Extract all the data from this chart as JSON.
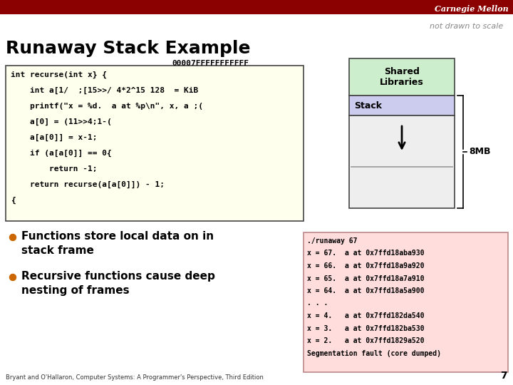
{
  "title": "Runaway Stack Example",
  "subtitle": "not drawn to scale",
  "carnegie_mellon": "Carnegie Mellon",
  "address_label": "00007FFFFFFFFFFF",
  "code_lines": [
    "int recurse(int x} {",
    "    int a[1/  ;[15>>/ 4*2^15 128  = KiB",
    "    printf(\"x = %d.  a at %p\\n\", x, a ;(",
    "    a[0] = (11>>4;1-(",
    "    a[a[0]] = x-1;",
    "    if (a[a[0]] == 0{",
    "        return -1;",
    "    return recurse(a[a[0]]) - 1;",
    "{"
  ],
  "shared_lib_label": "Shared\nLibraries",
  "stack_label": "Stack",
  "brace_label": "8MB",
  "bullet1_line1": "Functions store local data on in",
  "bullet1_line2": "stack frame",
  "bullet2_line1": "Recursive functions cause deep",
  "bullet2_line2": "nesting of frames",
  "terminal_lines": [
    "./runaway 67",
    "x = 67.  a at 0x7ffd18aba930",
    "x = 66.  a at 0x7ffd18a9a920",
    "x = 65.  a at 0x7ffd18a7a910",
    "x = 64.  a at 0x7ffd18a5a900",
    ". . .",
    "x = 4.   a at 0x7ffd182da540",
    "x = 3.   a at 0x7ffd182ba530",
    "x = 2.   a at 0x7ffd1829a520",
    "Segmentation fault (core dumped)"
  ],
  "footer": "Bryant and O'Hallaron, Computer Systems: A Programmer's Perspective, Third Edition",
  "page_number": "7",
  "bg_color": "#FFFFFF",
  "header_color": "#8B0000",
  "code_bg": "#FFFFEE",
  "shared_lib_bg": "#CCEECC",
  "stack_bg": "#CCCCEE",
  "stack_empty_bg": "#EEEEEE",
  "terminal_bg": "#FFDDDD",
  "bullet_color": "#CC6600"
}
